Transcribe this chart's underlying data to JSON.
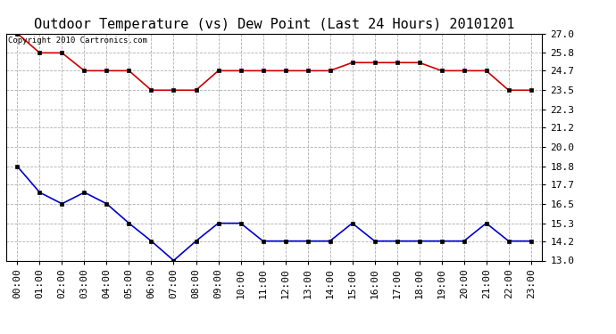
{
  "title": "Outdoor Temperature (vs) Dew Point (Last 24 Hours) 20101201",
  "copyright_text": "Copyright 2010 Cartronics.com",
  "x_labels": [
    "00:00",
    "01:00",
    "02:00",
    "03:00",
    "04:00",
    "05:00",
    "06:00",
    "07:00",
    "08:00",
    "09:00",
    "10:00",
    "11:00",
    "12:00",
    "13:00",
    "14:00",
    "15:00",
    "16:00",
    "17:00",
    "18:00",
    "19:00",
    "20:00",
    "21:00",
    "22:00",
    "23:00"
  ],
  "temp_data": [
    27.0,
    25.8,
    25.8,
    24.7,
    24.7,
    24.7,
    23.5,
    23.5,
    23.5,
    24.7,
    24.7,
    24.7,
    24.7,
    24.7,
    24.7,
    25.2,
    25.2,
    25.2,
    25.2,
    24.7,
    24.7,
    24.7,
    23.5,
    23.5
  ],
  "dew_data": [
    18.8,
    17.2,
    16.5,
    17.2,
    16.5,
    15.3,
    14.2,
    13.0,
    14.2,
    15.3,
    15.3,
    14.2,
    14.2,
    14.2,
    14.2,
    15.3,
    14.2,
    14.2,
    14.2,
    14.2,
    14.2,
    15.3,
    14.2,
    14.2
  ],
  "temp_color": "#cc0000",
  "dew_color": "#0000cc",
  "bg_color": "#ffffff",
  "grid_color": "#b0b0b0",
  "ylim": [
    13.0,
    27.0
  ],
  "yticks": [
    13.0,
    14.2,
    15.3,
    16.5,
    17.7,
    18.8,
    20.0,
    21.2,
    22.3,
    23.5,
    24.7,
    25.8,
    27.0
  ],
  "title_fontsize": 11,
  "tick_fontsize": 8,
  "copyright_fontsize": 6.5,
  "markersize": 3,
  "linewidth": 1.2
}
